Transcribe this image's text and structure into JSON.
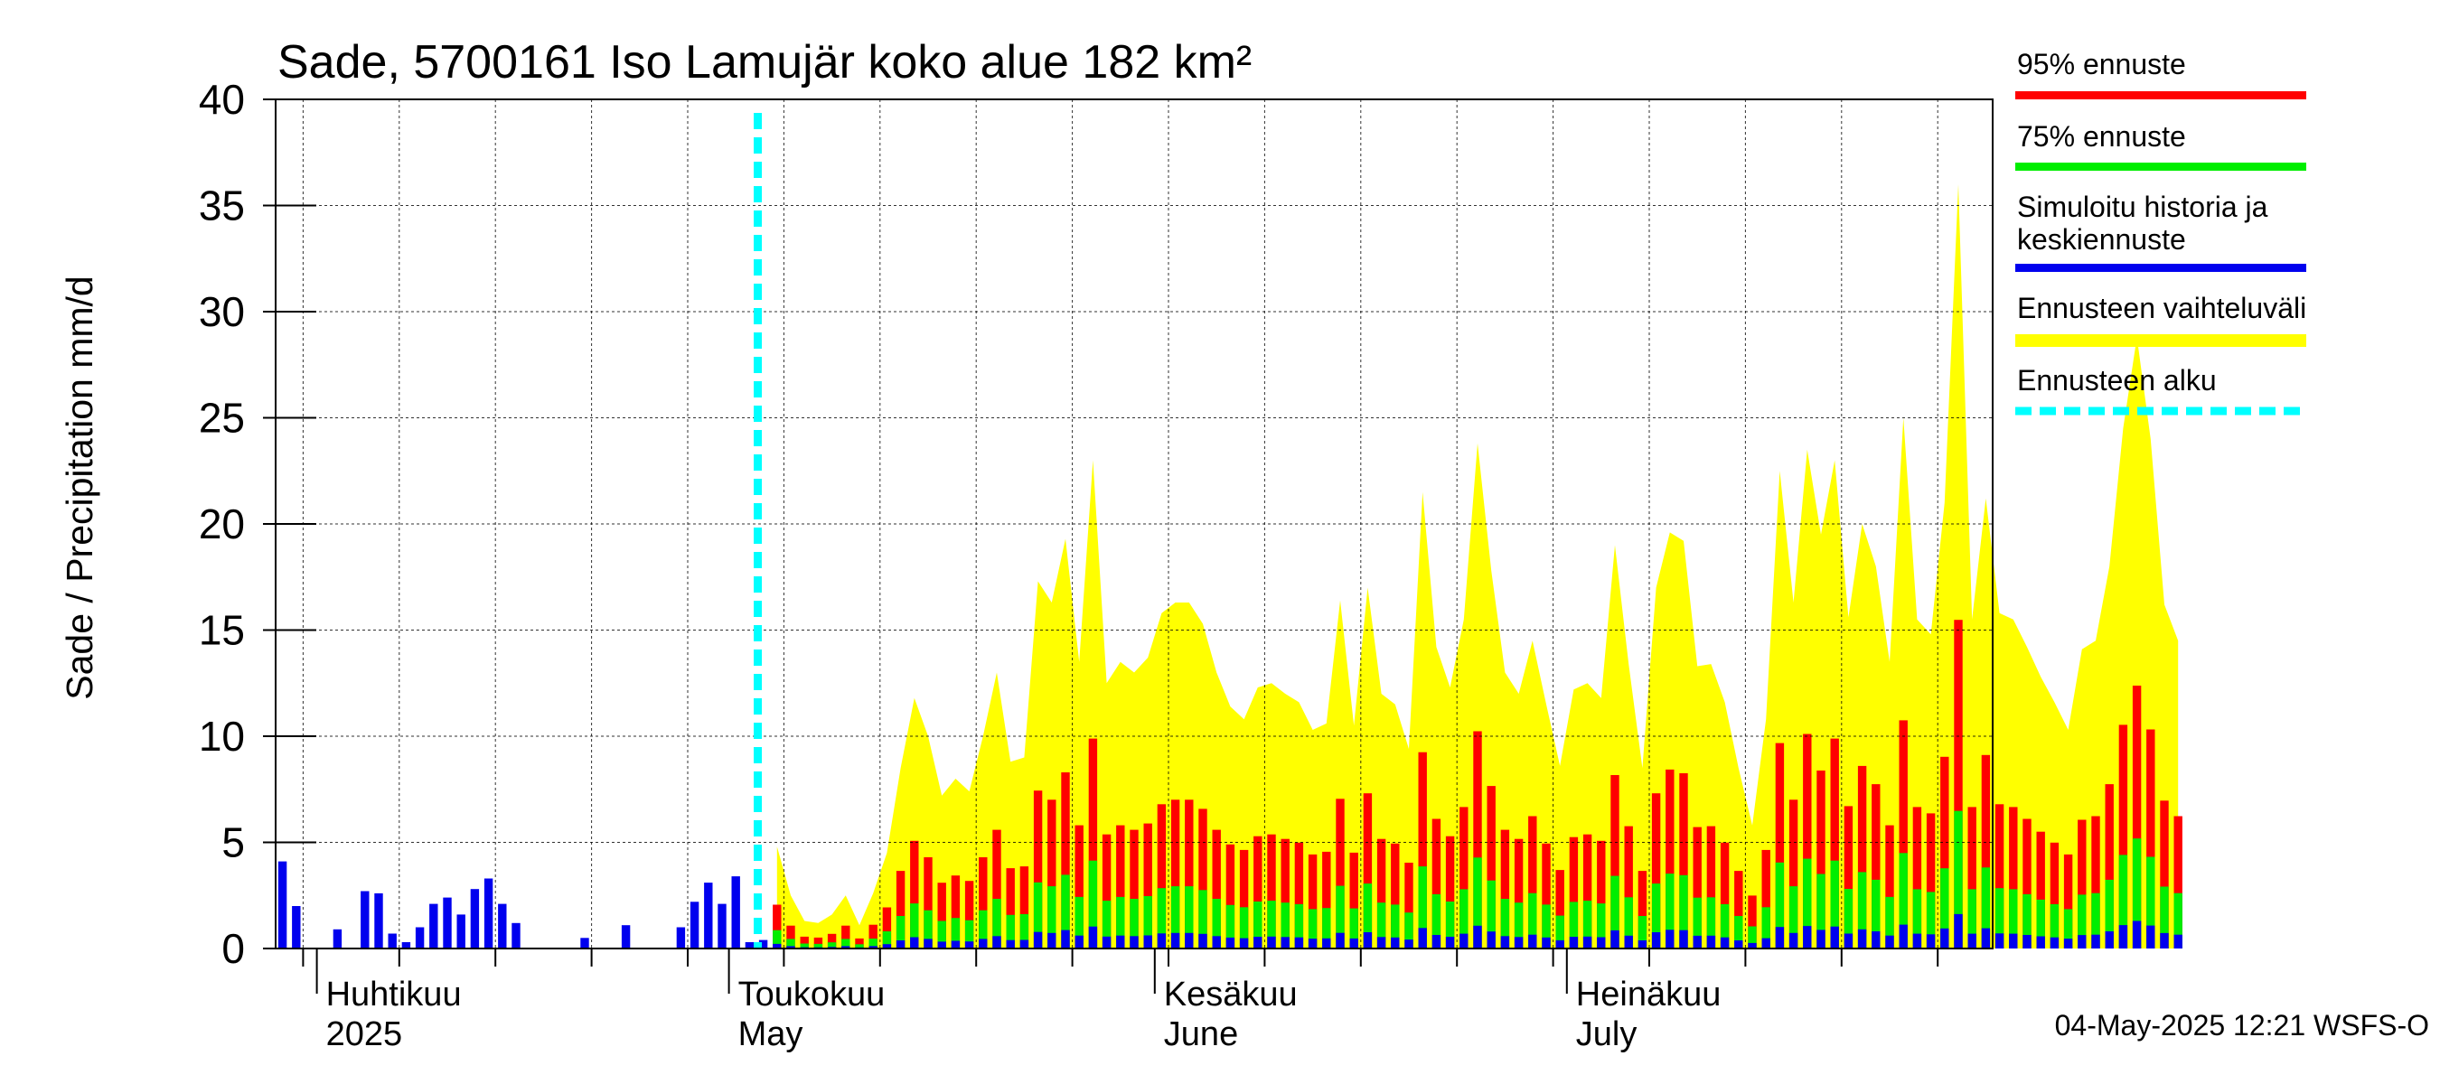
{
  "chart_data": {
    "type": "bar",
    "title": "Sade, 5700161 Iso Lamujär koko alue 182 km²",
    "ylabel": "Sade / Precipitation   mm/d",
    "ylim": [
      0,
      40
    ],
    "yticks": [
      0,
      5,
      10,
      15,
      20,
      25,
      30,
      35,
      40
    ],
    "x_start": "2025-03-29",
    "x_end": "2025-07-31",
    "forecast_start": "2025-05-04",
    "month_labels": [
      {
        "date": "2025-04-01",
        "fi": "Huhtikuu",
        "en": "2025"
      },
      {
        "date": "2025-05-01",
        "fi": "Toukokuu",
        "en": "May"
      },
      {
        "date": "2025-06-01",
        "fi": "Kesäkuu",
        "en": "June"
      },
      {
        "date": "2025-07-01",
        "fi": "Heinäkuu",
        "en": "July"
      }
    ],
    "history": [
      {
        "date": "2025-03-29",
        "value": 4.1
      },
      {
        "date": "2025-03-30",
        "value": 2.0
      },
      {
        "date": "2025-04-02",
        "value": 0.9
      },
      {
        "date": "2025-04-04",
        "value": 2.7
      },
      {
        "date": "2025-04-05",
        "value": 2.6
      },
      {
        "date": "2025-04-06",
        "value": 0.7
      },
      {
        "date": "2025-04-07",
        "value": 0.3
      },
      {
        "date": "2025-04-08",
        "value": 1.0
      },
      {
        "date": "2025-04-09",
        "value": 2.1
      },
      {
        "date": "2025-04-10",
        "value": 2.4
      },
      {
        "date": "2025-04-11",
        "value": 1.6
      },
      {
        "date": "2025-04-12",
        "value": 2.8
      },
      {
        "date": "2025-04-13",
        "value": 3.3
      },
      {
        "date": "2025-04-14",
        "value": 2.1
      },
      {
        "date": "2025-04-15",
        "value": 1.2
      },
      {
        "date": "2025-04-20",
        "value": 0.5
      },
      {
        "date": "2025-04-23",
        "value": 1.1
      },
      {
        "date": "2025-04-27",
        "value": 1.0
      },
      {
        "date": "2025-04-28",
        "value": 2.2
      },
      {
        "date": "2025-04-29",
        "value": 3.1
      },
      {
        "date": "2025-04-30",
        "value": 2.1
      },
      {
        "date": "2025-05-01",
        "value": 3.4
      },
      {
        "date": "2025-05-02",
        "value": 0.3
      },
      {
        "date": "2025-05-03",
        "value": 0.4
      }
    ],
    "forecast": {
      "start": "2025-05-04",
      "range_max": [
        4.8,
        2.5,
        1.3,
        1.2,
        1.6,
        2.5,
        1.1,
        2.6,
        4.5,
        8.5,
        11.8,
        10.0,
        7.2,
        8.0,
        7.4,
        10.0,
        13.0,
        8.8,
        9.0,
        17.3,
        16.3,
        19.3,
        13.5,
        23.0,
        12.5,
        13.5,
        13.0,
        13.7,
        15.8,
        16.3,
        16.3,
        15.3,
        13.0,
        11.4,
        10.8,
        12.3,
        12.5,
        12.0,
        11.6,
        10.3,
        10.6,
        16.4,
        10.5,
        17.0,
        12.0,
        11.5,
        9.4,
        21.5,
        14.2,
        12.3,
        15.5,
        23.8,
        17.8,
        13.0,
        12.0,
        14.5,
        11.5,
        8.6,
        12.2,
        12.5,
        11.8,
        19.0,
        13.4,
        8.5,
        17.0,
        19.6,
        19.2,
        13.3,
        13.4,
        11.6,
        8.5,
        5.8,
        10.8,
        22.5,
        16.3,
        23.5,
        19.5,
        23.0,
        15.6,
        20.0,
        18.0,
        13.5,
        25.0,
        15.5,
        14.8,
        21.0,
        36.0,
        15.5,
        21.2,
        15.8,
        15.5,
        14.2,
        12.8,
        11.6,
        10.3,
        14.1,
        14.5,
        18.0,
        24.5,
        28.8,
        24.0,
        16.2,
        14.5
      ]
    }
  },
  "legend": {
    "items": [
      {
        "label": "95% ennuste",
        "color": "#ff0000"
      },
      {
        "label": "75% ennuste",
        "color": "#00ee00"
      },
      {
        "label_line1": "Simuloitu historia ja",
        "label_line2": "keskiennuste",
        "color": "#0000ee"
      },
      {
        "label": "Ennusteen vaihteluväli",
        "color": "#ffff00"
      },
      {
        "label": "Ennusteen alku",
        "color": "#00ffff"
      }
    ]
  },
  "footer": {
    "timestamp": "04-May-2025 12:21 WSFS-O"
  },
  "colors": {
    "range": "#ffff00",
    "p95": "#ff0000",
    "p75": "#00ee00",
    "median": "#0000ee",
    "forecast_start": "#00ffff"
  }
}
